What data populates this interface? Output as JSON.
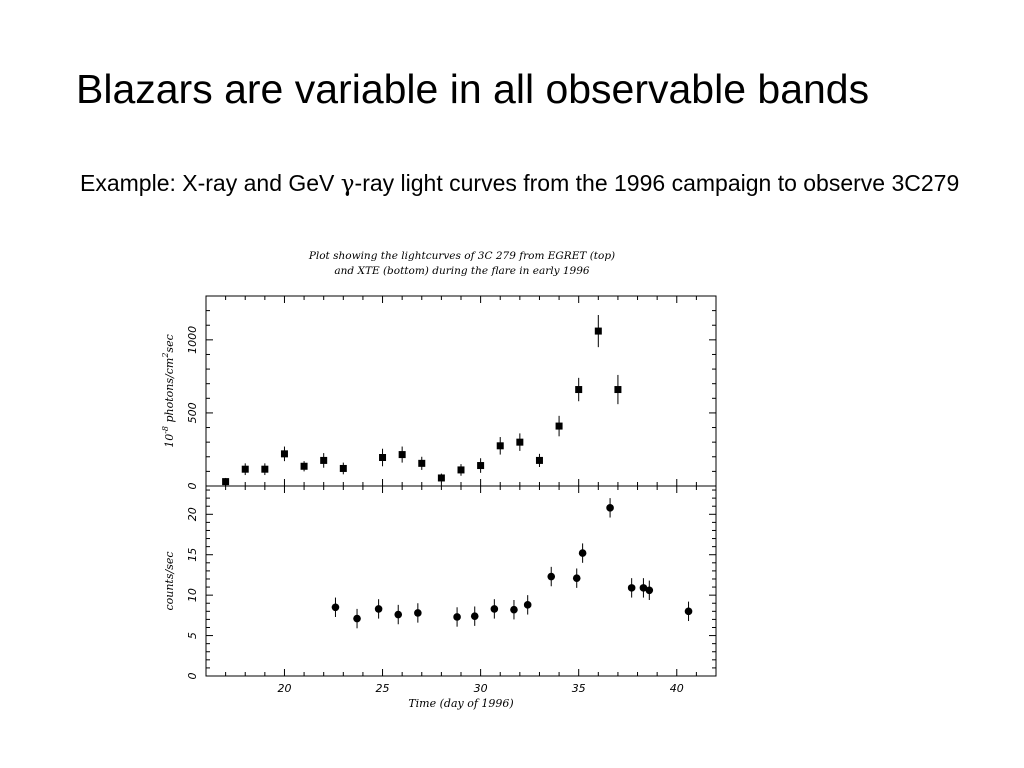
{
  "slide": {
    "title": "Blazars are variable in all observable bands",
    "bullet_pre": "Example:  X-ray and GeV ",
    "bullet_symbol": "γ",
    "bullet_post": "-ray light curves from the 1996 campaign to observe 3C279"
  },
  "figure": {
    "caption_line1": "Plot showing the lightcurves of 3C 279 from EGRET (top)",
    "caption_line2": "and XTE (bottom) during the flare in early 1996"
  },
  "chart_data": [
    {
      "type": "scatter",
      "panel": "top",
      "ylabel_prefix": "10",
      "ylabel_exp": "-8",
      "ylabel_mid": " photons/cm",
      "ylabel_exp2": "2",
      "ylabel_suffix": "sec",
      "xlabel": "",
      "xlim": [
        16,
        42
      ],
      "ylim": [
        0,
        1300
      ],
      "yticks": [
        0,
        500,
        1000
      ],
      "ytick_labels": [
        "0",
        "500",
        "1000"
      ],
      "marker": "square",
      "points": [
        {
          "x": 17.0,
          "y": 30,
          "err": 25
        },
        {
          "x": 18.0,
          "y": 115,
          "err": 40
        },
        {
          "x": 19.0,
          "y": 115,
          "err": 40
        },
        {
          "x": 20.0,
          "y": 220,
          "err": 50
        },
        {
          "x": 21.0,
          "y": 135,
          "err": 35
        },
        {
          "x": 22.0,
          "y": 175,
          "err": 50
        },
        {
          "x": 23.0,
          "y": 120,
          "err": 40
        },
        {
          "x": 25.0,
          "y": 195,
          "err": 60
        },
        {
          "x": 26.0,
          "y": 215,
          "err": 55
        },
        {
          "x": 27.0,
          "y": 155,
          "err": 45
        },
        {
          "x": 28.0,
          "y": 55,
          "err": 30
        },
        {
          "x": 29.0,
          "y": 110,
          "err": 40
        },
        {
          "x": 30.0,
          "y": 140,
          "err": 50
        },
        {
          "x": 31.0,
          "y": 275,
          "err": 60
        },
        {
          "x": 32.0,
          "y": 300,
          "err": 60
        },
        {
          "x": 33.0,
          "y": 175,
          "err": 45
        },
        {
          "x": 34.0,
          "y": 410,
          "err": 70
        },
        {
          "x": 35.0,
          "y": 660,
          "err": 80
        },
        {
          "x": 36.0,
          "y": 1060,
          "err": 110
        },
        {
          "x": 37.0,
          "y": 660,
          "err": 100
        }
      ]
    },
    {
      "type": "scatter",
      "panel": "bottom",
      "ylabel": "counts/sec",
      "xlabel": "Time (day of 1996)",
      "xlim": [
        16,
        42
      ],
      "ylim": [
        0,
        23.5
      ],
      "yticks": [
        0,
        5,
        10,
        15,
        20
      ],
      "ytick_labels": [
        "0",
        "5",
        "10",
        "15",
        "20"
      ],
      "xticks": [
        20,
        25,
        30,
        35,
        40
      ],
      "xtick_labels": [
        "20",
        "25",
        "30",
        "35",
        "40"
      ],
      "marker": "circle",
      "points": [
        {
          "x": 22.6,
          "y": 8.5,
          "err": 1.2
        },
        {
          "x": 23.7,
          "y": 7.1,
          "err": 1.2
        },
        {
          "x": 24.8,
          "y": 8.3,
          "err": 1.2
        },
        {
          "x": 25.8,
          "y": 7.6,
          "err": 1.2
        },
        {
          "x": 26.8,
          "y": 7.8,
          "err": 1.2
        },
        {
          "x": 28.8,
          "y": 7.3,
          "err": 1.2
        },
        {
          "x": 29.7,
          "y": 7.4,
          "err": 1.2
        },
        {
          "x": 30.7,
          "y": 8.3,
          "err": 1.2
        },
        {
          "x": 31.7,
          "y": 8.2,
          "err": 1.2
        },
        {
          "x": 32.4,
          "y": 8.8,
          "err": 1.2
        },
        {
          "x": 33.6,
          "y": 12.3,
          "err": 1.2
        },
        {
          "x": 34.9,
          "y": 12.1,
          "err": 1.2
        },
        {
          "x": 35.2,
          "y": 15.2,
          "err": 1.2
        },
        {
          "x": 36.6,
          "y": 20.8,
          "err": 1.2
        },
        {
          "x": 37.7,
          "y": 10.9,
          "err": 1.2
        },
        {
          "x": 38.3,
          "y": 10.9,
          "err": 1.2
        },
        {
          "x": 38.6,
          "y": 10.6,
          "err": 1.2
        },
        {
          "x": 40.6,
          "y": 8.0,
          "err": 1.2
        }
      ]
    }
  ]
}
